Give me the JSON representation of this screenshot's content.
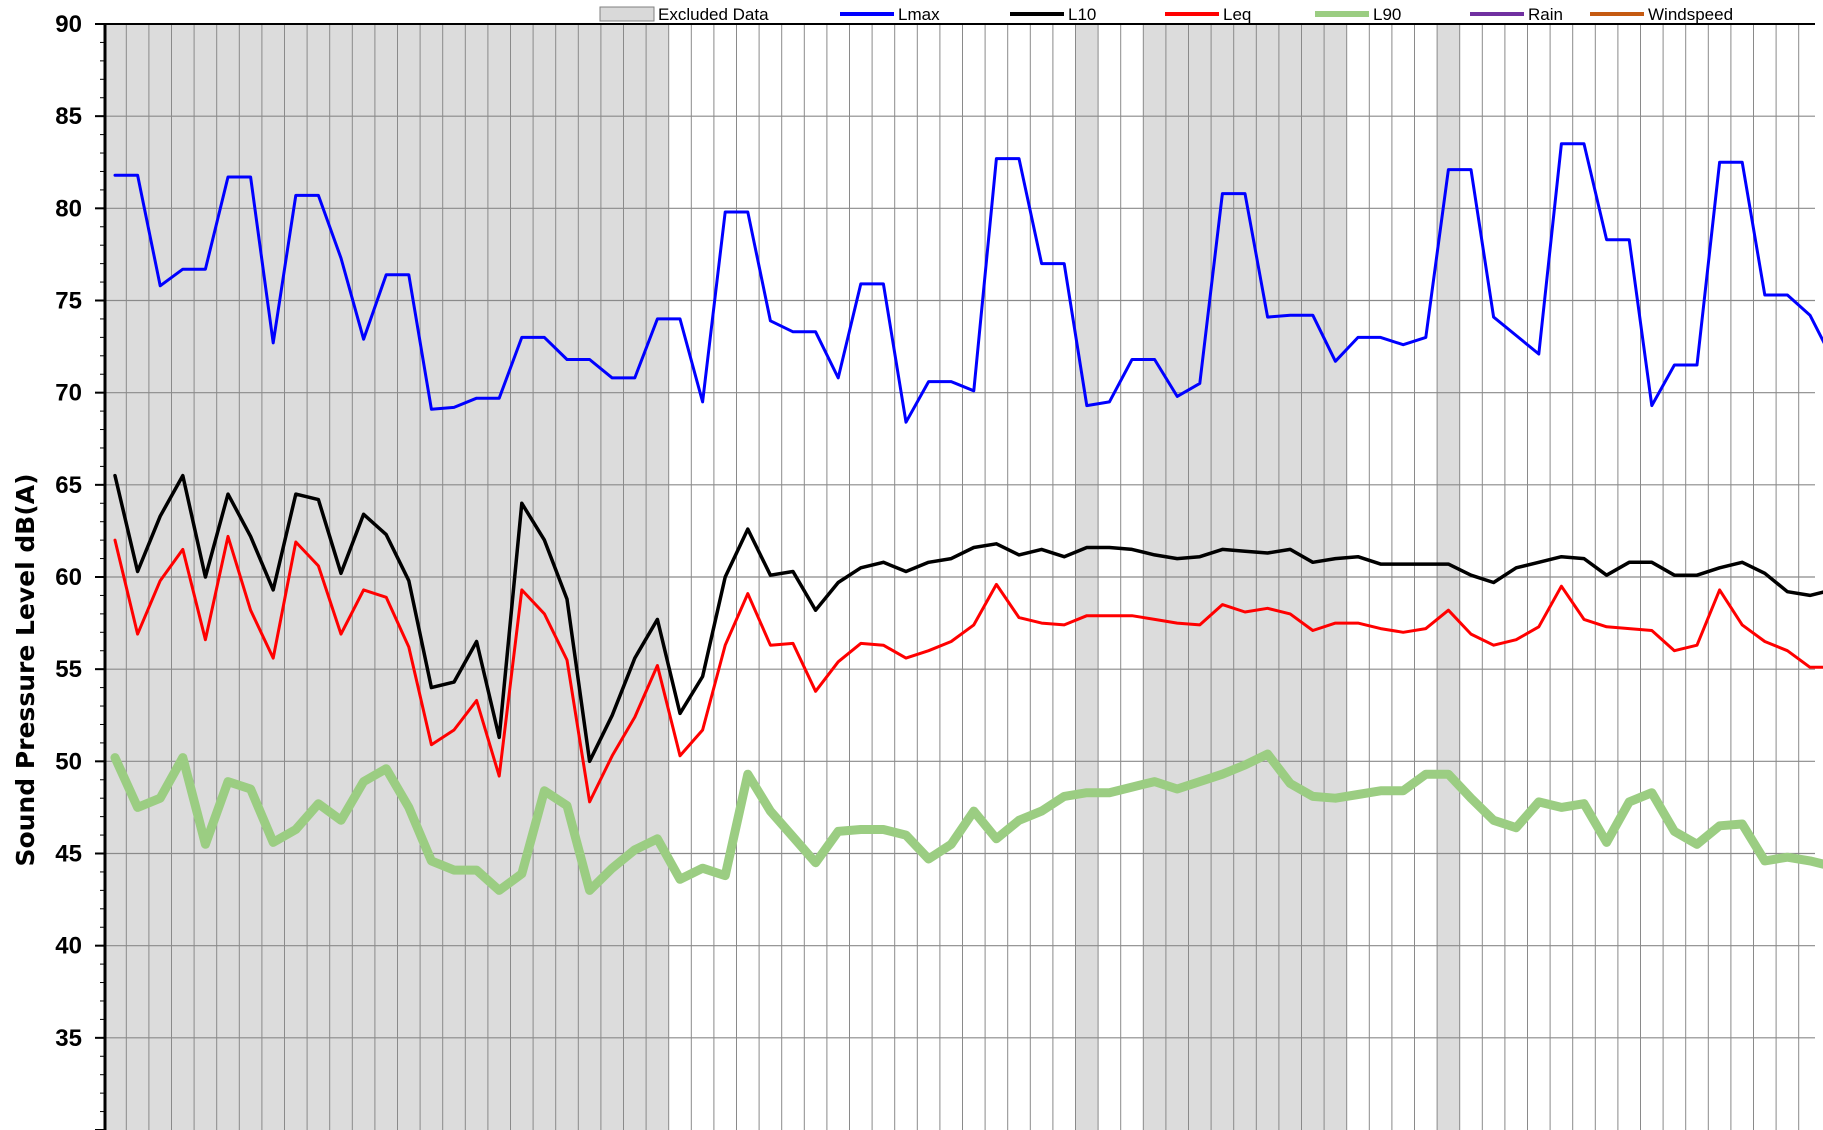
{
  "chart_data": {
    "type": "line",
    "title": "",
    "xlabel": "",
    "ylabel": "Sound Pressure Level dB(A)",
    "ylim": [
      30,
      90
    ],
    "y_ticks": [
      35,
      40,
      45,
      50,
      55,
      60,
      65,
      70,
      75,
      80,
      85,
      90
    ],
    "grid": true,
    "legend_position": "top",
    "legend": [
      {
        "name": "Excluded Data",
        "color": "#d9d9d9",
        "kind": "area"
      },
      {
        "name": "Lmax",
        "color": "#0000ff",
        "kind": "line"
      },
      {
        "name": "L10",
        "color": "#000000",
        "kind": "line"
      },
      {
        "name": "Leq",
        "color": "#ff0000",
        "kind": "line"
      },
      {
        "name": "L90",
        "color": "#9bcd82",
        "kind": "line"
      },
      {
        "name": "Rain",
        "color": "#7030a0",
        "kind": "line"
      },
      {
        "name": "Windspeed",
        "color": "#c55a11",
        "kind": "line"
      }
    ],
    "excluded_intervals": [
      [
        0,
        25
      ],
      [
        43,
        44
      ],
      [
        46,
        55
      ],
      [
        59,
        60
      ]
    ],
    "series": [
      {
        "name": "Lmax",
        "color": "#0000ff",
        "width": 3,
        "values": [
          81.8,
          81.8,
          75.8,
          76.7,
          76.7,
          81.7,
          81.7,
          72.7,
          80.7,
          80.7,
          77.3,
          72.9,
          76.4,
          76.4,
          69.1,
          69.2,
          69.7,
          69.7,
          73.0,
          73.0,
          71.8,
          71.8,
          70.8,
          70.8,
          74.0,
          74.0,
          69.5,
          79.8,
          79.8,
          73.9,
          73.3,
          73.3,
          70.8,
          75.9,
          75.9,
          68.4,
          70.6,
          70.6,
          70.1,
          82.7,
          82.7,
          77.0,
          77.0,
          69.3,
          69.5,
          71.8,
          71.8,
          69.8,
          70.5,
          80.8,
          80.8,
          74.1,
          74.2,
          74.2,
          71.7,
          73.0,
          73.0,
          72.6,
          73.0,
          82.1,
          82.1,
          74.1,
          73.1,
          72.1,
          83.5,
          83.5,
          78.3,
          78.3,
          69.3,
          71.5,
          71.5,
          82.5,
          82.5,
          75.3,
          75.3,
          74.2,
          71.8
        ]
      },
      {
        "name": "L10",
        "color": "#000000",
        "width": 3.5,
        "values": [
          65.5,
          60.3,
          63.3,
          65.5,
          60.0,
          64.5,
          62.2,
          59.3,
          64.5,
          64.2,
          60.2,
          63.4,
          62.3,
          59.8,
          54.0,
          54.3,
          56.5,
          51.3,
          64.0,
          62.0,
          58.8,
          50.0,
          52.5,
          55.6,
          57.7,
          52.6,
          54.6,
          60.0,
          62.6,
          60.1,
          60.3,
          58.2,
          59.7,
          60.5,
          60.8,
          60.3,
          60.8,
          61.0,
          61.6,
          61.8,
          61.2,
          61.5,
          61.1,
          61.6,
          61.6,
          61.5,
          61.2,
          61.0,
          61.1,
          61.5,
          61.4,
          61.3,
          61.5,
          60.8,
          61.0,
          61.1,
          60.7,
          60.7,
          60.7,
          60.7,
          60.1,
          59.7,
          60.5,
          60.8,
          61.1,
          61.0,
          60.1,
          60.8,
          60.8,
          60.1,
          60.1,
          60.5,
          60.8,
          60.2,
          59.2,
          59.0,
          59.3
        ]
      },
      {
        "name": "Leq",
        "color": "#ff0000",
        "width": 3,
        "values": [
          62.0,
          56.9,
          59.8,
          61.5,
          56.6,
          62.2,
          58.2,
          55.6,
          61.9,
          60.6,
          56.9,
          59.3,
          58.9,
          56.2,
          50.9,
          51.7,
          53.3,
          49.2,
          59.3,
          58.0,
          55.5,
          47.8,
          50.3,
          52.4,
          55.2,
          50.3,
          51.7,
          56.3,
          59.1,
          56.3,
          56.4,
          53.8,
          55.4,
          56.4,
          56.3,
          55.6,
          56.0,
          56.5,
          57.4,
          59.6,
          57.8,
          57.5,
          57.4,
          57.9,
          57.9,
          57.9,
          57.7,
          57.5,
          57.4,
          58.5,
          58.1,
          58.3,
          58.0,
          57.1,
          57.5,
          57.5,
          57.2,
          57.0,
          57.2,
          58.2,
          56.9,
          56.3,
          56.6,
          57.3,
          59.5,
          57.7,
          57.3,
          57.2,
          57.1,
          56.0,
          56.3,
          59.3,
          57.4,
          56.5,
          56.0,
          55.1,
          55.1
        ]
      },
      {
        "name": "L90",
        "color": "#9bcd82",
        "width": 9,
        "values": [
          50.2,
          47.5,
          48.0,
          50.2,
          45.5,
          48.9,
          48.5,
          45.6,
          46.3,
          47.7,
          46.8,
          48.9,
          49.6,
          47.5,
          44.6,
          44.1,
          44.1,
          43.0,
          43.9,
          48.4,
          47.6,
          43.0,
          44.2,
          45.2,
          45.8,
          43.6,
          44.2,
          43.8,
          49.3,
          47.3,
          45.9,
          44.5,
          46.2,
          46.3,
          46.3,
          46.0,
          44.7,
          45.5,
          47.3,
          45.8,
          46.8,
          47.3,
          48.1,
          48.3,
          48.3,
          48.6,
          48.9,
          48.5,
          48.9,
          49.3,
          49.8,
          50.4,
          48.8,
          48.1,
          48.0,
          48.2,
          48.4,
          48.4,
          49.3,
          49.3,
          48.0,
          46.8,
          46.4,
          47.8,
          47.5,
          47.7,
          45.6,
          47.8,
          48.3,
          46.2,
          45.5,
          46.5,
          46.6,
          44.6,
          44.8,
          44.6,
          44.3
        ]
      }
    ]
  }
}
